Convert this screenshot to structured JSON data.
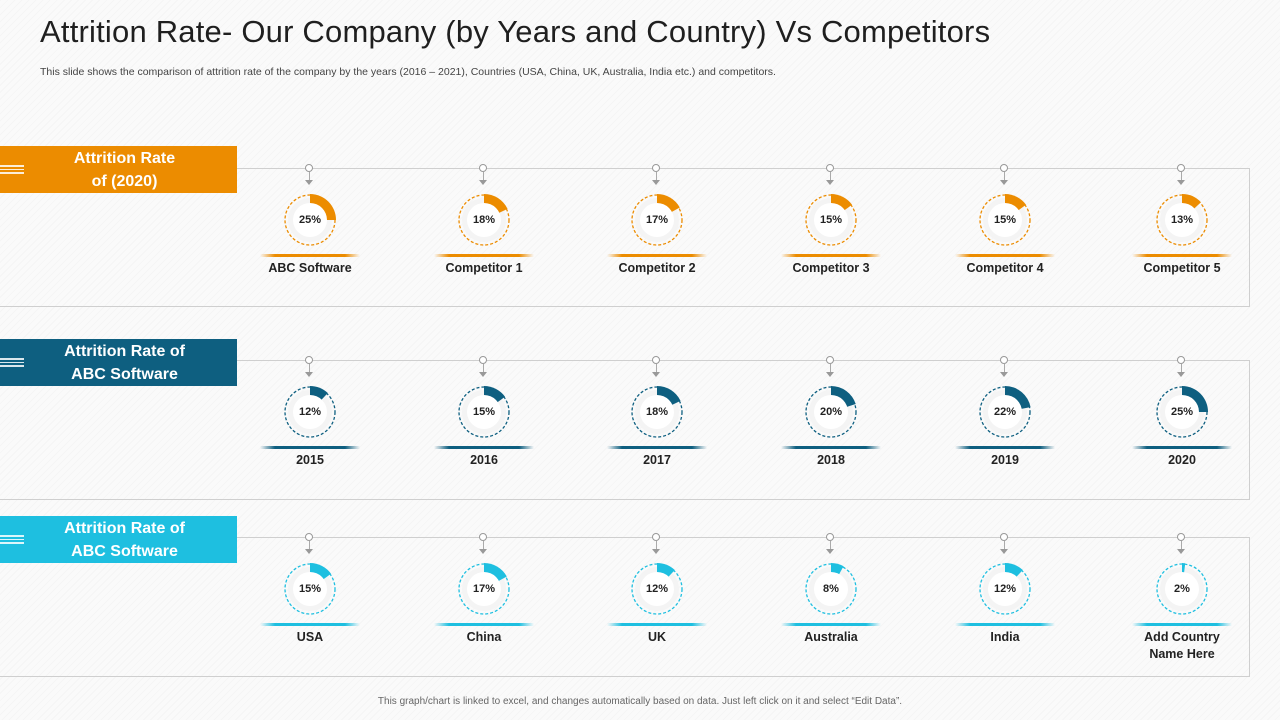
{
  "title": "Attrition Rate- Our Company (by Years and Country) Vs Competitors",
  "subtitle": "This slide shows the comparison of attrition rate of the company by the  years (2016 – 2021), Countries (USA,  China, UK,  Australia, India etc.) and competitors.",
  "footer": "This graph/chart is linked to excel, and changes automatically based on data. Just left click on it and select “Edit Data”.",
  "chart_data": [
    {
      "type": "pie",
      "title": "Attrition Rate\nof (2020)",
      "color": "#ec8c00",
      "categories": [
        "ABC Software",
        "Competitor 1",
        "Competitor 2",
        "Competitor 3",
        "Competitor 4",
        "Competitor 5"
      ],
      "values": [
        25,
        18,
        17,
        15,
        15,
        13
      ],
      "value_labels": [
        "25%",
        "18%",
        "17%",
        "15%",
        "15%",
        "13%"
      ]
    },
    {
      "type": "pie",
      "title": "Attrition Rate of\nABC Software",
      "color": "#0e5f80",
      "categories": [
        "2015",
        "2016",
        "2017",
        "2018",
        "2019",
        "2020"
      ],
      "values": [
        12,
        15,
        18,
        20,
        22,
        25
      ],
      "value_labels": [
        "12%",
        "15%",
        "18%",
        "20%",
        "22%",
        "25%"
      ]
    },
    {
      "type": "pie",
      "title": "Attrition Rate of\nABC Software",
      "color": "#1ebfe0",
      "categories": [
        "USA",
        "China",
        "UK",
        "Australia",
        "India",
        "Add Country\nName Here"
      ],
      "values": [
        15,
        17,
        12,
        8,
        12,
        2
      ],
      "value_labels": [
        "15%",
        "17%",
        "12%",
        "8%",
        "12%",
        "2%"
      ]
    }
  ]
}
